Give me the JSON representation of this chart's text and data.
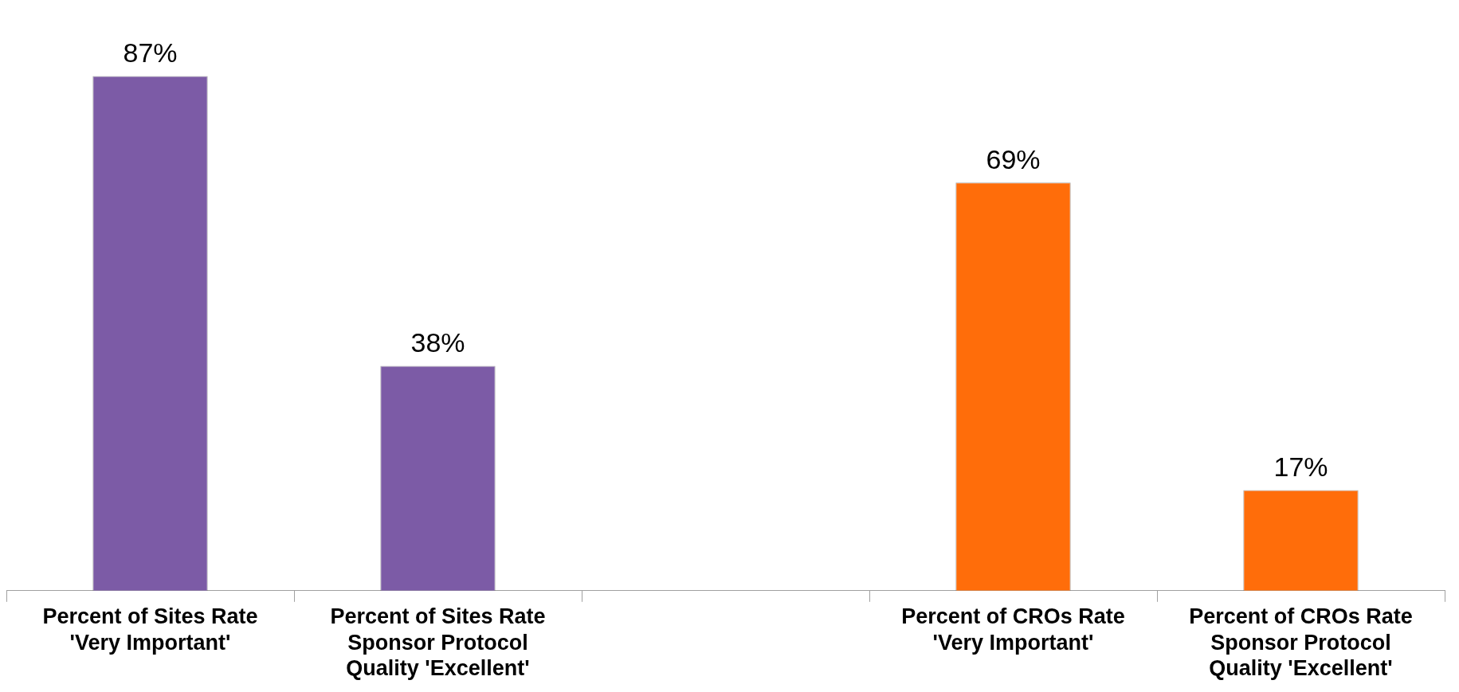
{
  "chart_data": {
    "type": "bar",
    "categories": [
      "Percent of Sites Rate 'Very Important'",
      "Percent of Sites Rate Sponsor Protocol Quality 'Excellent'",
      null,
      "Percent of CROs Rate 'Very Important'",
      "Percent of CROs Rate Sponsor Protocol Quality 'Excellent'"
    ],
    "values": [
      87,
      38,
      null,
      69,
      17
    ],
    "colors": [
      "#7c5ba6",
      "#7c5ba6",
      "#7c5ba6",
      "#ff6d0a",
      "#ff6d0a"
    ],
    "value_labels": [
      "87%",
      "38%",
      null,
      "69%",
      "17%"
    ],
    "grid": false,
    "legend": false
  }
}
